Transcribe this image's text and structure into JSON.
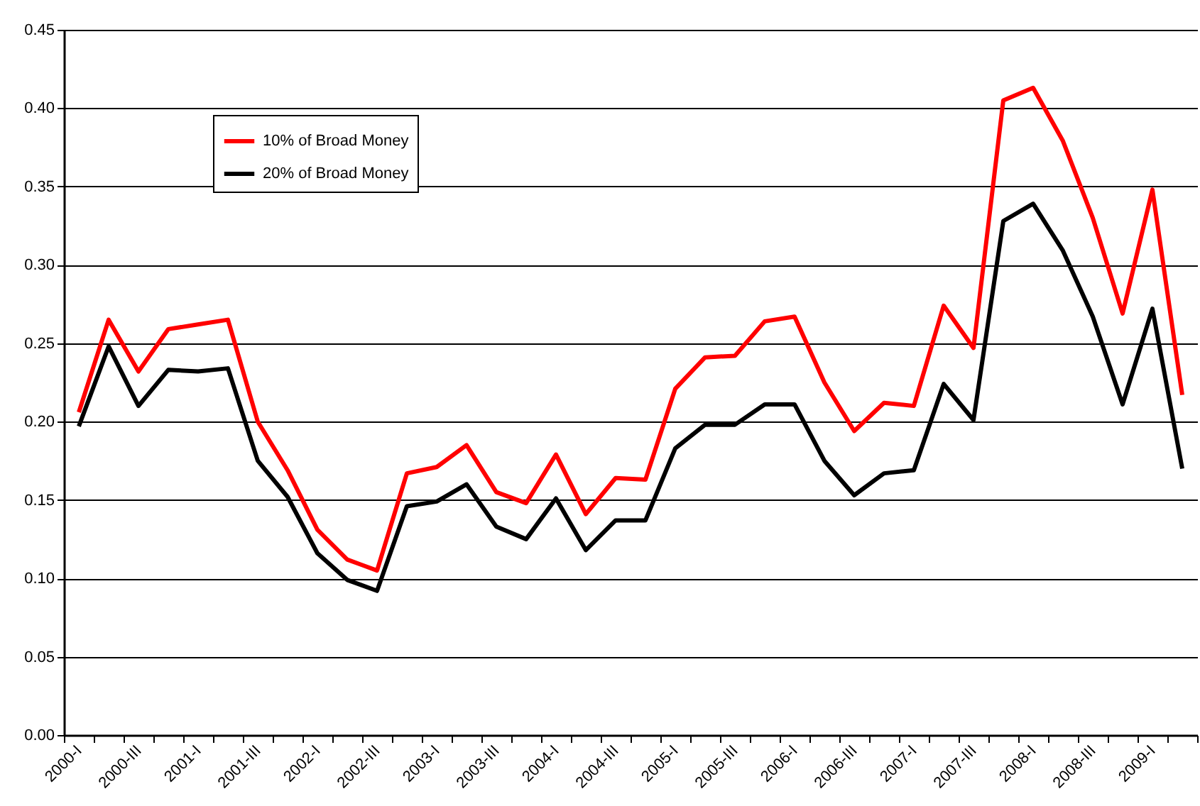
{
  "chart_data": {
    "type": "line",
    "categories": [
      "2000-I",
      null,
      "2000-III",
      null,
      "2001-I",
      null,
      "2001-III",
      null,
      "2002-I",
      null,
      "2002-III",
      null,
      "2003-I",
      null,
      "2003-III",
      null,
      "2004-I",
      null,
      "2004-III",
      null,
      "2005-I",
      null,
      "2005-III",
      null,
      "2006-I",
      null,
      "2006-III",
      null,
      "2007-I",
      null,
      "2007-III",
      null,
      "2008-I",
      null,
      "2008-III",
      null,
      "2009-I",
      null
    ],
    "series": [
      {
        "name": "10% of Broad Money",
        "color": "#ff0000",
        "values": [
          0.206,
          0.265,
          0.232,
          0.259,
          0.262,
          0.265,
          0.2,
          0.169,
          0.131,
          0.112,
          0.105,
          0.167,
          0.171,
          0.185,
          0.155,
          0.148,
          0.179,
          0.141,
          0.164,
          0.163,
          0.221,
          0.241,
          0.242,
          0.264,
          0.267,
          0.225,
          0.194,
          0.212,
          0.21,
          0.274,
          0.247,
          0.405,
          0.413,
          0.379,
          0.33,
          0.269,
          0.348,
          0.217
        ]
      },
      {
        "name": "20% of Broad Money",
        "color": "#000000",
        "values": [
          0.197,
          0.248,
          0.21,
          0.233,
          0.232,
          0.234,
          0.175,
          0.152,
          0.116,
          0.099,
          0.092,
          0.146,
          0.149,
          0.16,
          0.133,
          0.125,
          0.151,
          0.118,
          0.137,
          0.137,
          0.183,
          0.198,
          0.198,
          0.211,
          0.211,
          0.175,
          0.153,
          0.167,
          0.169,
          0.224,
          0.201,
          0.328,
          0.339,
          0.309,
          0.267,
          0.211,
          0.272,
          0.17
        ]
      }
    ],
    "ylim": [
      0,
      0.45
    ],
    "yticks": [
      {
        "value": 0,
        "label": "0.00"
      },
      {
        "value": 0.05,
        "label": "0.05"
      },
      {
        "value": 0.1,
        "label": "0.10"
      },
      {
        "value": 0.15,
        "label": "0.15"
      },
      {
        "value": 0.2,
        "label": "0.20"
      },
      {
        "value": 0.25,
        "label": "0.25"
      },
      {
        "value": 0.3,
        "label": "0.30"
      },
      {
        "value": 0.35,
        "label": "0.35"
      },
      {
        "value": 0.4,
        "label": "0.40"
      },
      {
        "value": 0.45,
        "label": "0.45"
      }
    ],
    "grid": "y",
    "legend": "top left",
    "marker": "none",
    "line_style": "solid"
  }
}
